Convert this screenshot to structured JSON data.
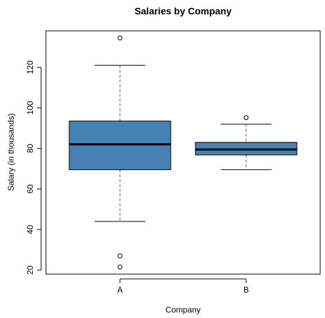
{
  "chart_data": {
    "type": "box",
    "title": "Salaries by Company",
    "xlabel": "Company",
    "ylabel": "Salary (in thousands)",
    "ylim": [
      18,
      138
    ],
    "yticks": [
      20,
      40,
      60,
      80,
      100,
      120
    ],
    "categories": [
      "A",
      "B"
    ],
    "box_color": "#4682B4",
    "grid": false,
    "boxes": [
      {
        "category": "A",
        "whisker_low": 44,
        "q1": 69.5,
        "median": 82,
        "q3": 93.5,
        "whisker_high": 121,
        "outliers": [
          134.5,
          27,
          21.5
        ]
      },
      {
        "category": "B",
        "whisker_low": 69.5,
        "q1": 76.8,
        "median": 79.5,
        "q3": 83,
        "whisker_high": 92,
        "outliers": [
          95.2
        ]
      }
    ]
  }
}
